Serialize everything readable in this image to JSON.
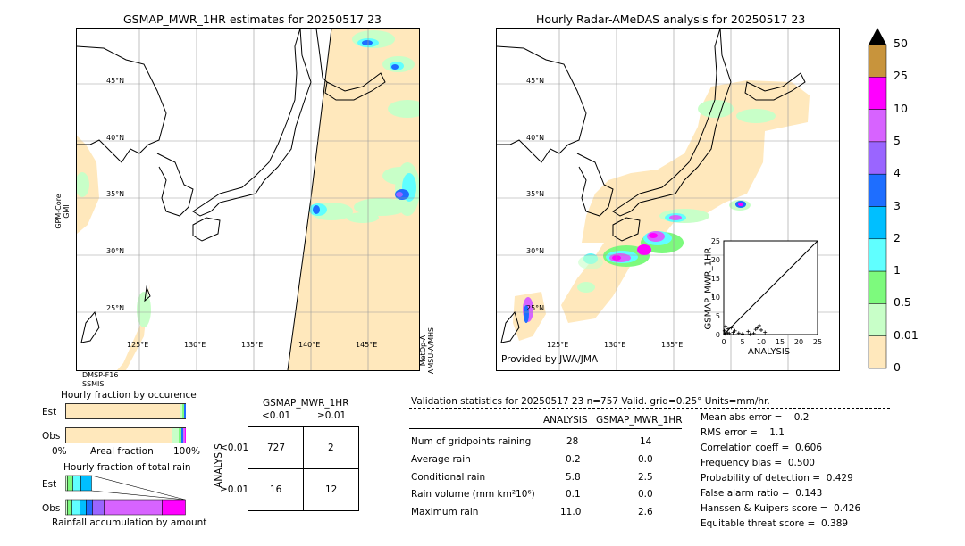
{
  "left_map": {
    "title": "GSMAP_MWR_1HR estimates for 20250517 23",
    "lat_labels": [
      "45°N",
      "40°N",
      "35°N",
      "30°N",
      "25°N"
    ],
    "lon_labels": [
      "125°E",
      "130°E",
      "135°E",
      "140°E",
      "145°E"
    ],
    "side_label_left": "GPM-Core\nGMI",
    "side_label_right": "MetOp-A\nAMSU-A/MHS",
    "bottom_label": "DMSP-F16\nSSMIS"
  },
  "right_map": {
    "title": "Hourly Radar-AMeDAS analysis for 20250517 23",
    "lat_labels": [
      "45°N",
      "40°N",
      "35°N",
      "30°N",
      "25°N"
    ],
    "lon_labels": [
      "125°E",
      "130°E",
      "135°E"
    ],
    "credit": "Provided by JWA/JMA"
  },
  "scatter_inset": {
    "xlabel": "ANALYSIS",
    "ylabel": "GSMAP_MWR_1HR",
    "ticks": [
      "0",
      "5",
      "10",
      "15",
      "20",
      "25"
    ]
  },
  "colorbar": {
    "labels": [
      "50",
      "25",
      "10",
      "5",
      "4",
      "3",
      "2",
      "1",
      "0.5",
      "0.01",
      "0"
    ],
    "colors": [
      "#c8943c",
      "#ff00ff",
      "#d763ff",
      "#9a65ff",
      "#1e6eff",
      "#00bfff",
      "#60ffff",
      "#7dfa7d",
      "#c8ffc8",
      "#ffe8bc"
    ]
  },
  "fraction_charts": {
    "occurrence_title": "Hourly fraction by occurence",
    "total_title": "Hourly fraction of total rain",
    "bottom_title": "Rainfall accumulation by amount",
    "row_est": "Est",
    "row_obs": "Obs",
    "axis_left": "0%",
    "axis_mid": "Areal fraction",
    "axis_right": "100%"
  },
  "contingency": {
    "title": "GSMAP_MWR_1HR",
    "col_lt": "<0.01",
    "col_ge": "≥0.01",
    "row_axis": "ANALYSIS",
    "row_lt": "<0.01",
    "row_ge": "≥0.01",
    "cells": [
      "727",
      "2",
      "16",
      "12"
    ]
  },
  "validation": {
    "header": "Validation statistics for 20250517 23  n=757 Valid. grid=0.25° Units=mm/hr.",
    "col1": "ANALYSIS",
    "col2": "GSMAP_MWR_1HR",
    "rows": [
      {
        "label": "Num of gridpoints raining",
        "a": "28",
        "b": "14"
      },
      {
        "label": "Average rain",
        "a": "0.2",
        "b": "0.0"
      },
      {
        "label": "Conditional rain",
        "a": "5.8",
        "b": "2.5"
      },
      {
        "label": "Rain volume (mm km²10⁶)",
        "a": "0.1",
        "b": "0.0"
      },
      {
        "label": "Maximum rain",
        "a": "11.0",
        "b": "2.6"
      }
    ],
    "scores": [
      "Mean abs error =    0.2",
      "RMS error =    1.1",
      "Correlation coeff =  0.606",
      "Frequency bias =  0.500",
      "Probability of detection =  0.429",
      "False alarm ratio =  0.143",
      "Hanssen & Kuipers score =  0.426",
      "Equitable threat score =  0.389"
    ]
  },
  "chart_data": {
    "type": "scatter",
    "xlabel": "ANALYSIS",
    "ylabel": "GSMAP_MWR_1HR",
    "xlim": [
      0,
      25
    ],
    "ylim": [
      0,
      25
    ],
    "points": [
      [
        0.3,
        0.2
      ],
      [
        0.6,
        0.4
      ],
      [
        1,
        0.5
      ],
      [
        1.5,
        0.3
      ],
      [
        2,
        1.8
      ],
      [
        2.5,
        0.6
      ],
      [
        3,
        1
      ],
      [
        0.5,
        2.2
      ],
      [
        1.2,
        1.5
      ],
      [
        4,
        0.4
      ],
      [
        5,
        0.2
      ],
      [
        6.5,
        0.8
      ],
      [
        7,
        0.1
      ],
      [
        8,
        0.3
      ],
      [
        8.5,
        1.4
      ],
      [
        9,
        1.8
      ],
      [
        9.5,
        2.4
      ],
      [
        10,
        1.2
      ],
      [
        11,
        0.6
      ],
      [
        0.2,
        1
      ]
    ]
  }
}
